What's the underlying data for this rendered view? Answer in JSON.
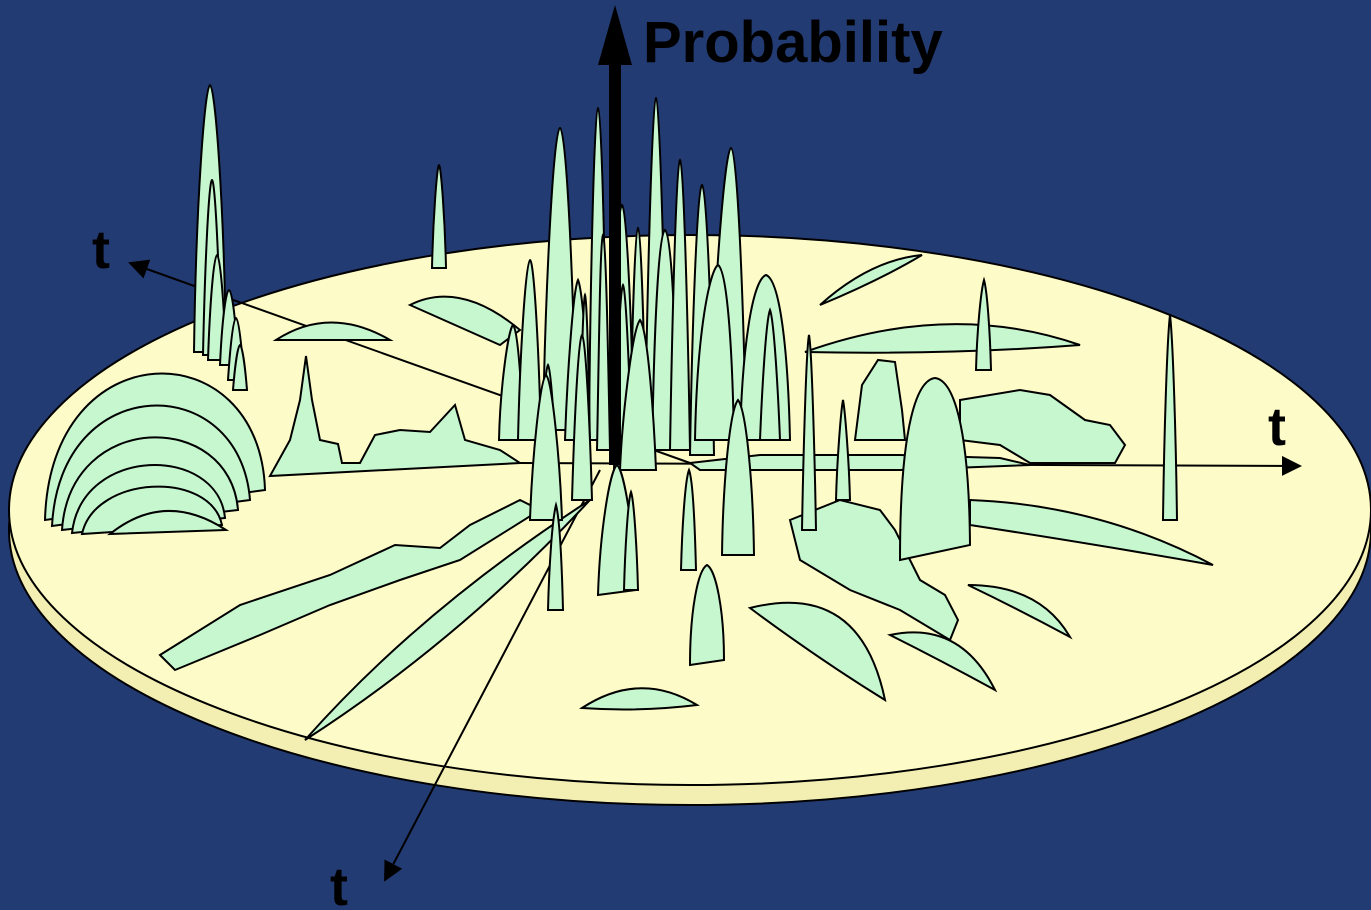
{
  "labels": {
    "vertical_axis": "Probability",
    "axis_left": "t",
    "axis_right": "t",
    "axis_bottom": "t"
  },
  "colors": {
    "background": "#233b73",
    "disk_top": "#fdfbc8",
    "disk_edge": "#f3efb2",
    "peaks": "#c6f7cf",
    "lines": "#000000"
  }
}
